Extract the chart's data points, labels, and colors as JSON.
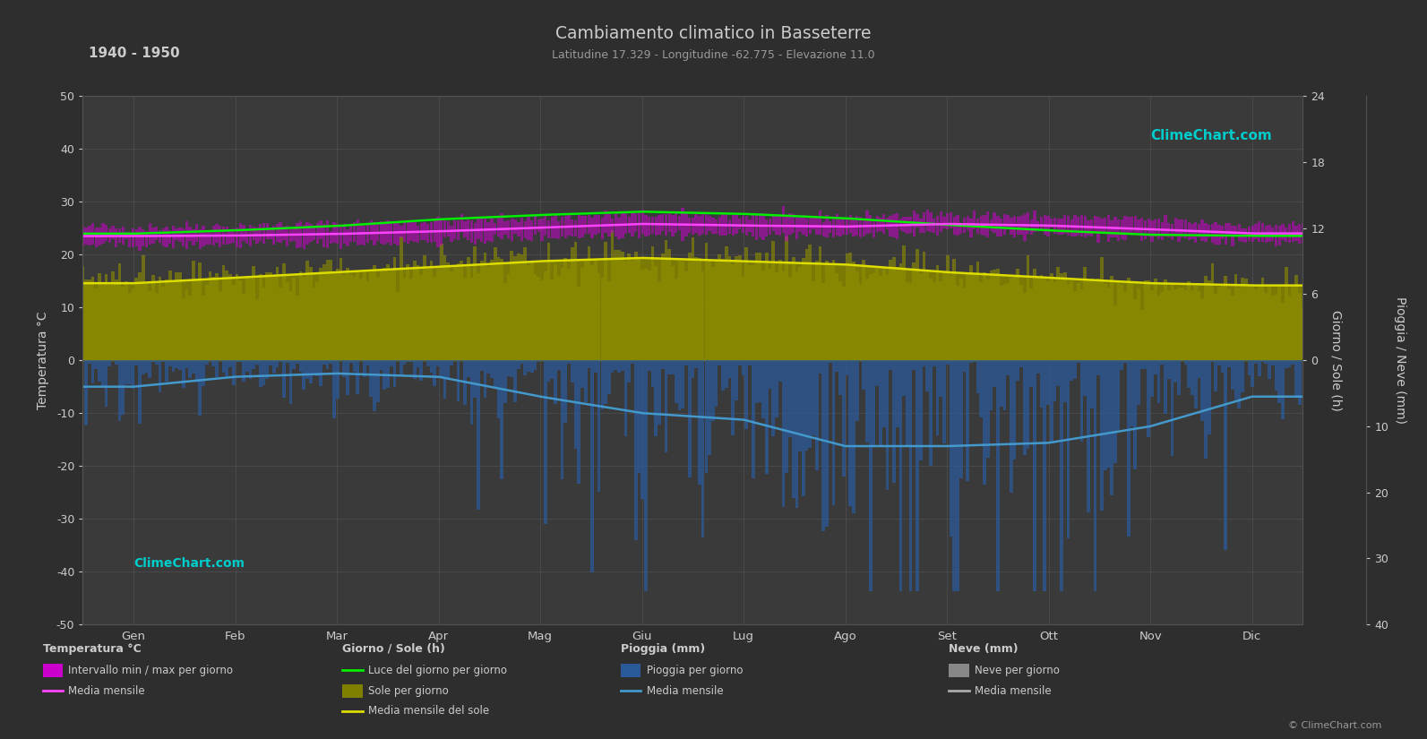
{
  "title": "Cambiamento climatico in Basseterre",
  "subtitle": "Latitudine 17.329 - Longitudine -62.775 - Elevazione 11.0",
  "period_label": "1940 - 1950",
  "bg_color": "#2e2e2e",
  "plot_bg_color": "#3a3a3a",
  "grid_color": "#525252",
  "months": [
    "Gen",
    "Feb",
    "Mar",
    "Apr",
    "Mag",
    "Giu",
    "Lug",
    "Ago",
    "Set",
    "Ott",
    "Nov",
    "Dic"
  ],
  "temp_max_monthly": [
    25.2,
    25.4,
    25.8,
    26.3,
    27.0,
    27.6,
    27.3,
    27.1,
    27.6,
    27.2,
    26.6,
    25.6
  ],
  "temp_min_monthly": [
    21.8,
    21.9,
    22.1,
    22.5,
    23.3,
    24.0,
    23.7,
    23.6,
    24.1,
    23.9,
    23.1,
    22.4
  ],
  "temp_mean_monthly": [
    23.5,
    23.6,
    23.9,
    24.4,
    25.1,
    25.8,
    25.5,
    25.3,
    25.8,
    25.5,
    24.8,
    24.0
  ],
  "daylight_monthly": [
    11.5,
    11.8,
    12.2,
    12.8,
    13.2,
    13.5,
    13.3,
    12.9,
    12.3,
    11.8,
    11.4,
    11.3
  ],
  "sunshine_monthly": [
    7.0,
    7.5,
    8.0,
    8.5,
    9.0,
    9.3,
    9.0,
    8.7,
    8.0,
    7.5,
    7.0,
    6.8
  ],
  "rain_monthly_mean": [
    4.0,
    2.5,
    2.0,
    2.5,
    5.5,
    8.0,
    9.0,
    13.0,
    13.0,
    12.5,
    10.0,
    5.5
  ],
  "colors": {
    "temp_band": "#cc00cc",
    "temp_mean_line": "#ff44ff",
    "daylight_line": "#00ee00",
    "sunshine_fill_bg": "#808000",
    "sunshine_fill_bars": "#999900",
    "sunshine_mean_line": "#dddd00",
    "rain_fill": "#2a5a9a",
    "rain_mean_line": "#4499cc",
    "snow_fill": "#888888",
    "snow_mean_line": "#aaaaaa",
    "text_main": "#cccccc",
    "text_secondary": "#999999",
    "watermark": "#00cccc"
  }
}
